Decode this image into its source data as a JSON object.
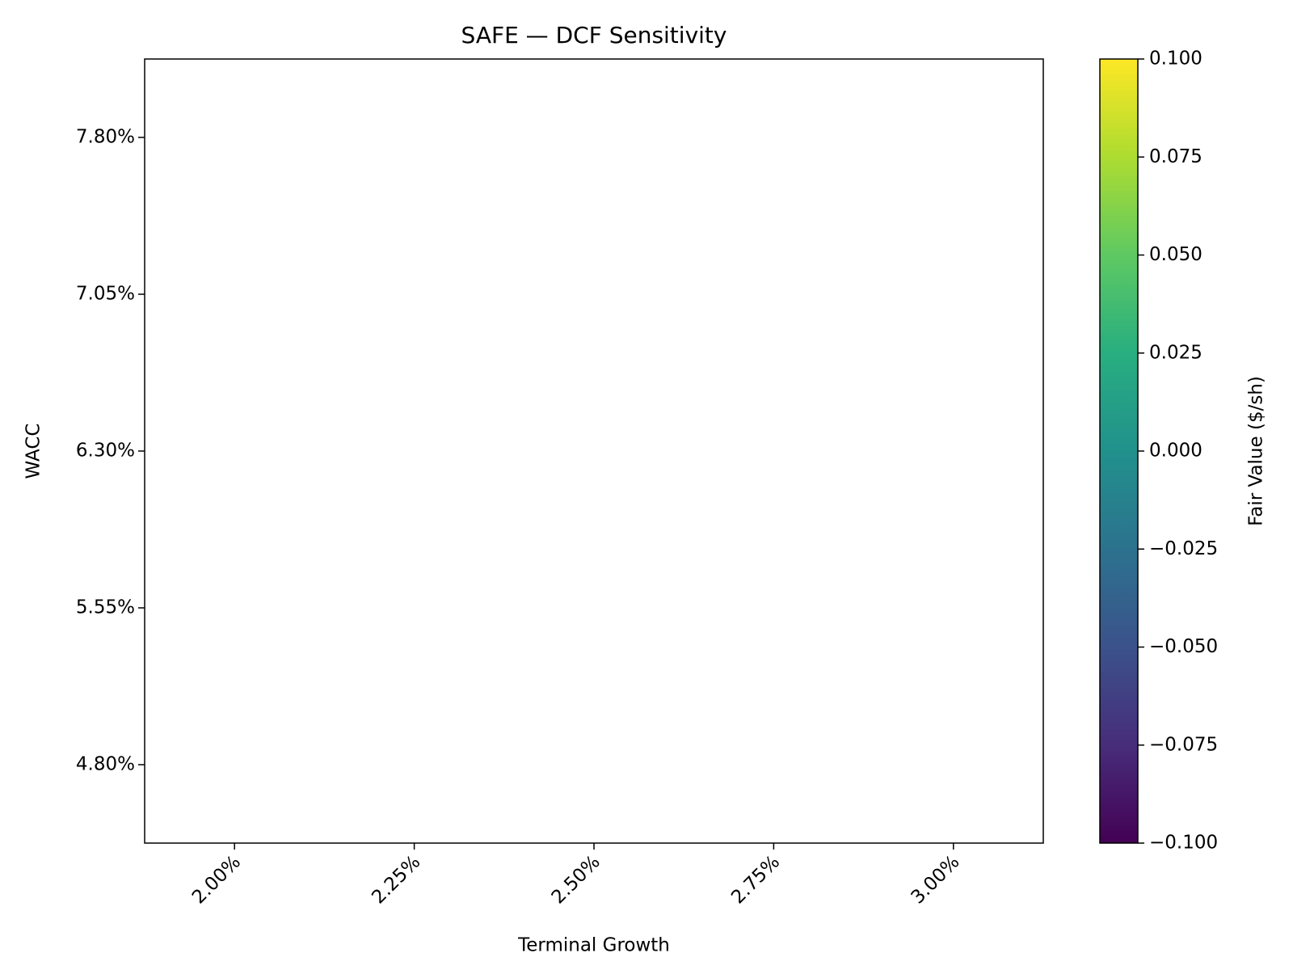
{
  "chart_data": {
    "type": "heatmap",
    "title": "SAFE — DCF Sensitivity",
    "x_label": "Terminal Growth",
    "y_label": "WACC",
    "x_categories": [
      "2.00%",
      "2.25%",
      "2.50%",
      "2.75%",
      "3.00%"
    ],
    "y_categories": [
      "7.80%",
      "7.05%",
      "6.30%",
      "5.55%",
      "4.80%"
    ],
    "values": [
      [
        null,
        null,
        null,
        null,
        null
      ],
      [
        null,
        null,
        null,
        null,
        null
      ],
      [
        null,
        null,
        null,
        null,
        null
      ],
      [
        null,
        null,
        null,
        null,
        null
      ],
      [
        null,
        null,
        null,
        null,
        null
      ]
    ],
    "colorbar_label": "Fair Value ($/sh)",
    "clim": [
      -0.1,
      0.1
    ],
    "cticks": [
      {
        "value": -0.1,
        "label": "−0.100"
      },
      {
        "value": -0.075,
        "label": "−0.075"
      },
      {
        "value": -0.05,
        "label": "−0.050"
      },
      {
        "value": -0.025,
        "label": "−0.025"
      },
      {
        "value": 0,
        "label": "0.000"
      },
      {
        "value": 0.025,
        "label": "0.025"
      },
      {
        "value": 0.05,
        "label": "0.050"
      },
      {
        "value": 0.075,
        "label": "0.075"
      },
      {
        "value": 0.1,
        "label": "0.100"
      }
    ]
  }
}
